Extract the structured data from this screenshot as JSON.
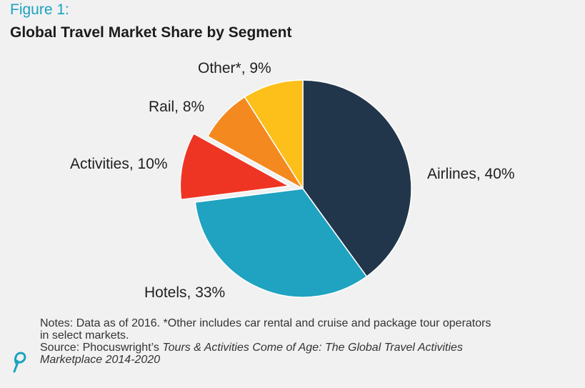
{
  "figure_label": "Figure 1:",
  "title": "Global Travel Market Share by Segment",
  "chart_data": {
    "type": "pie",
    "title": "Global Travel Market Share by Segment",
    "start_angle_deg": 0,
    "direction": "clockwise",
    "slices": [
      {
        "name": "Airlines",
        "value": 40,
        "label": "Airlines, 40%",
        "color": "#21364b",
        "exploded": false
      },
      {
        "name": "Hotels",
        "value": 33,
        "label": "Hotels, 33%",
        "color": "#1fa3c0",
        "exploded": false
      },
      {
        "name": "Activities",
        "value": 10,
        "label": "Activities, 10%",
        "color": "#ee3524",
        "exploded": true
      },
      {
        "name": "Rail",
        "value": 8,
        "label": "Rail, 8%",
        "color": "#f4891f",
        "exploded": false
      },
      {
        "name": "Other*",
        "value": 9,
        "label": "Other*, 9%",
        "color": "#fdbf1a",
        "exploded": false
      }
    ]
  },
  "notes": {
    "line1": "Notes: Data as of 2016. *Other includes car rental and cruise and package tour operators",
    "line2": "in select markets.",
    "source_prefix": "Source: Phocuswright’s ",
    "source_title_1": "Tours & Activities Come of Age: The Global Travel Activities",
    "source_title_2": "Marketplace 2014-2020"
  },
  "logo_icon": "phocuswright-p-logo-icon"
}
